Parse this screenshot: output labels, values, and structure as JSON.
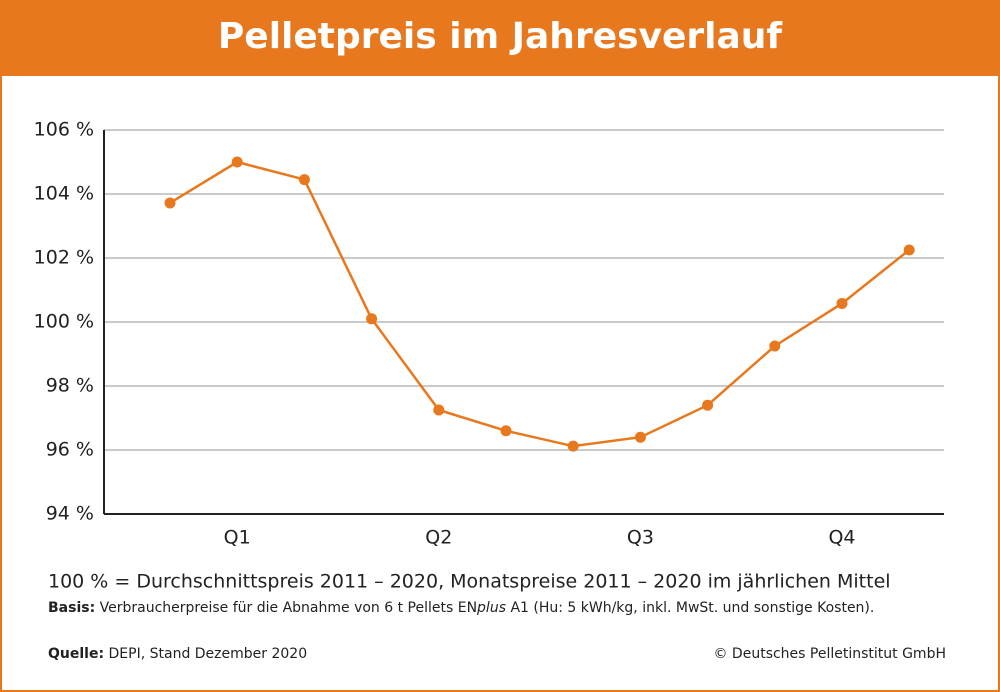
{
  "chart_data": {
    "type": "line",
    "title": "Pelletpreis im Jahresverlauf",
    "categories": [
      null,
      "Q1",
      null,
      null,
      "Q2",
      null,
      null,
      "Q3",
      null,
      null,
      "Q4",
      null
    ],
    "values": [
      103.72,
      105.0,
      104.45,
      100.1,
      97.25,
      96.6,
      96.12,
      96.4,
      97.4,
      99.25,
      100.58,
      102.25
    ],
    "color": "#e8781e",
    "ylim": [
      94,
      106
    ],
    "yticks": [
      {
        "value": 94,
        "label": "94 %"
      },
      {
        "value": 96,
        "label": "96 %"
      },
      {
        "value": 98,
        "label": "98 %"
      },
      {
        "value": 100,
        "label": "100 %"
      },
      {
        "value": 102,
        "label": "102 %"
      },
      {
        "value": 104,
        "label": "104 %"
      },
      {
        "value": 106,
        "label": "106 %"
      }
    ],
    "grid": true
  },
  "footer": {
    "note": "100 % = Durchschnittspreis 2011 – 2020, Monatspreise 2011 – 2020 im jährlichen Mittel",
    "basis_label": "Basis:",
    "basis_text": "Verbraucherpreise für die Abnahme von 6 t Pellets EN",
    "basis_italic": "plus",
    "basis_rest": " A1 (Hu: 5 kWh/kg, inkl. MwSt. und sonstige Kosten).",
    "source_label": "Quelle:",
    "source_text": "DEPI, Stand Dezember 2020",
    "copyright": "© Deutsches Pelletinstitut GmbH"
  }
}
